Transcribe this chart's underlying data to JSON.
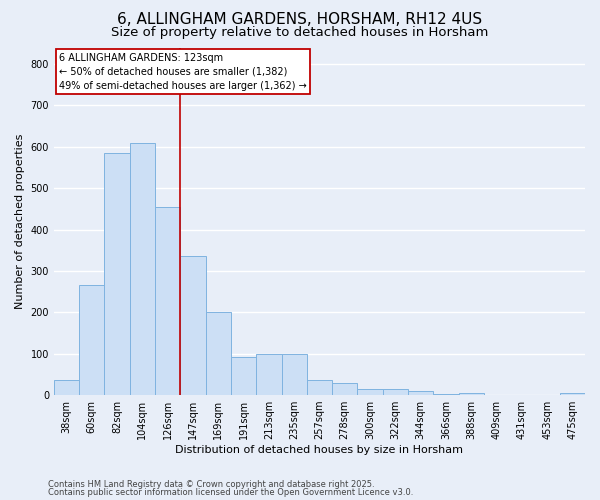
{
  "title": "6, ALLINGHAM GARDENS, HORSHAM, RH12 4US",
  "subtitle": "Size of property relative to detached houses in Horsham",
  "xlabel": "Distribution of detached houses by size in Horsham",
  "ylabel": "Number of detached properties",
  "categories": [
    "38sqm",
    "60sqm",
    "82sqm",
    "104sqm",
    "126sqm",
    "147sqm",
    "169sqm",
    "191sqm",
    "213sqm",
    "235sqm",
    "257sqm",
    "278sqm",
    "300sqm",
    "322sqm",
    "344sqm",
    "366sqm",
    "388sqm",
    "409sqm",
    "431sqm",
    "453sqm",
    "475sqm"
  ],
  "values": [
    37,
    265,
    585,
    610,
    455,
    335,
    200,
    93,
    100,
    100,
    37,
    30,
    15,
    15,
    10,
    2,
    4,
    0,
    0,
    0,
    4
  ],
  "bar_color": "#ccdff5",
  "bar_edge_color": "#7fb3e0",
  "background_color": "#e8eef8",
  "grid_color": "#ffffff",
  "vline_color": "#c00000",
  "vline_x_index": 4,
  "annotation_text": "6 ALLINGHAM GARDENS: 123sqm\n← 50% of detached houses are smaller (1,382)\n49% of semi-detached houses are larger (1,362) →",
  "annotation_box_facecolor": "#ffffff",
  "annotation_box_edgecolor": "#c00000",
  "footnote1": "Contains HM Land Registry data © Crown copyright and database right 2025.",
  "footnote2": "Contains public sector information licensed under the Open Government Licence v3.0.",
  "ylim": [
    0,
    840
  ],
  "yticks": [
    0,
    100,
    200,
    300,
    400,
    500,
    600,
    700,
    800
  ],
  "title_fontsize": 11,
  "subtitle_fontsize": 9.5,
  "axis_label_fontsize": 8,
  "tick_fontsize": 7,
  "annotation_fontsize": 7,
  "footnote_fontsize": 6
}
